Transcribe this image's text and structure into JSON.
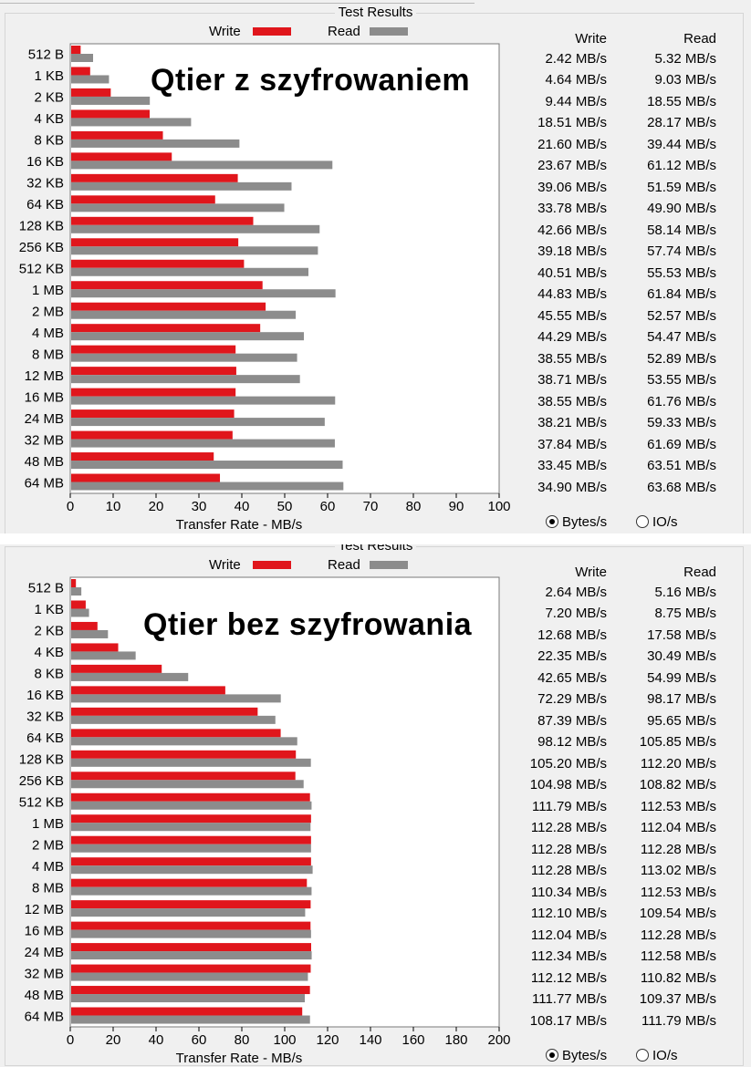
{
  "colors": {
    "write": "#e0161c",
    "read": "#8c8c8c"
  },
  "panels": [
    {
      "title": "Test Results",
      "overlay": "Qtier z szyfrowaniem",
      "legend_write": "Write",
      "legend_read": "Read",
      "table_head_write": "Write",
      "table_head_read": "Read",
      "radio_bytes": "Bytes/s",
      "radio_io": "IO/s",
      "radio_selected": "bytes",
      "chart_data": {
        "type": "bar",
        "orientation": "horizontal",
        "categories": [
          "512 B",
          "1 KB",
          "2 KB",
          "4 KB",
          "8 KB",
          "16 KB",
          "32 KB",
          "64 KB",
          "128 KB",
          "256 KB",
          "512 KB",
          "1 MB",
          "2 MB",
          "4 MB",
          "8 MB",
          "12 MB",
          "16 MB",
          "24 MB",
          "32 MB",
          "48 MB",
          "64 MB"
        ],
        "series": [
          {
            "name": "Write",
            "values": [
              2.42,
              4.64,
              9.44,
              18.51,
              21.6,
              23.67,
              39.06,
              33.78,
              42.66,
              39.18,
              40.51,
              44.83,
              45.55,
              44.29,
              38.55,
              38.71,
              38.55,
              38.21,
              37.84,
              33.45,
              34.9
            ]
          },
          {
            "name": "Read",
            "values": [
              5.32,
              9.03,
              18.55,
              28.17,
              39.44,
              61.12,
              51.59,
              49.9,
              58.14,
              57.74,
              55.53,
              61.84,
              52.57,
              54.47,
              52.89,
              53.55,
              61.76,
              59.33,
              61.69,
              63.51,
              63.68
            ]
          }
        ],
        "xlabel": "Transfer Rate - MB/s",
        "xlim": [
          0,
          100
        ],
        "xticks": [
          0,
          10,
          20,
          30,
          40,
          50,
          60,
          70,
          80,
          90,
          100
        ],
        "grid": false,
        "legend": "top"
      },
      "table": {
        "write": [
          "2.42 MB/s",
          "4.64 MB/s",
          "9.44 MB/s",
          "18.51 MB/s",
          "21.60 MB/s",
          "23.67 MB/s",
          "39.06 MB/s",
          "33.78 MB/s",
          "42.66 MB/s",
          "39.18 MB/s",
          "40.51 MB/s",
          "44.83 MB/s",
          "45.55 MB/s",
          "44.29 MB/s",
          "38.55 MB/s",
          "38.71 MB/s",
          "38.55 MB/s",
          "38.21 MB/s",
          "37.84 MB/s",
          "33.45 MB/s",
          "34.90 MB/s"
        ],
        "read": [
          "5.32 MB/s",
          "9.03 MB/s",
          "18.55 MB/s",
          "28.17 MB/s",
          "39.44 MB/s",
          "61.12 MB/s",
          "51.59 MB/s",
          "49.90 MB/s",
          "58.14 MB/s",
          "57.74 MB/s",
          "55.53 MB/s",
          "61.84 MB/s",
          "52.57 MB/s",
          "54.47 MB/s",
          "52.89 MB/s",
          "53.55 MB/s",
          "61.76 MB/s",
          "59.33 MB/s",
          "61.69 MB/s",
          "63.51 MB/s",
          "63.68 MB/s"
        ]
      }
    },
    {
      "title": "Test Results",
      "overlay": "Qtier bez szyfrowania",
      "legend_write": "Write",
      "legend_read": "Read",
      "table_head_write": "Write",
      "table_head_read": "Read",
      "radio_bytes": "Bytes/s",
      "radio_io": "IO/s",
      "radio_selected": "bytes",
      "chart_data": {
        "type": "bar",
        "orientation": "horizontal",
        "categories": [
          "512 B",
          "1 KB",
          "2 KB",
          "4 KB",
          "8 KB",
          "16 KB",
          "32 KB",
          "64 KB",
          "128 KB",
          "256 KB",
          "512 KB",
          "1 MB",
          "2 MB",
          "4 MB",
          "8 MB",
          "12 MB",
          "16 MB",
          "24 MB",
          "32 MB",
          "48 MB",
          "64 MB"
        ],
        "series": [
          {
            "name": "Write",
            "values": [
              2.64,
              7.2,
              12.68,
              22.35,
              42.65,
              72.29,
              87.39,
              98.12,
              105.2,
              104.98,
              111.79,
              112.28,
              112.28,
              112.28,
              110.34,
              112.1,
              112.04,
              112.34,
              112.12,
              111.77,
              108.17
            ]
          },
          {
            "name": "Read",
            "values": [
              5.16,
              8.75,
              17.58,
              30.49,
              54.99,
              98.17,
              95.65,
              105.85,
              112.2,
              108.82,
              112.53,
              112.04,
              112.28,
              113.02,
              112.53,
              109.54,
              112.28,
              112.58,
              110.82,
              109.37,
              111.79
            ]
          }
        ],
        "xlabel": "Transfer Rate - MB/s",
        "xlim": [
          0,
          200
        ],
        "xticks": [
          0,
          20,
          40,
          60,
          80,
          100,
          120,
          140,
          160,
          180,
          200
        ],
        "grid": false,
        "legend": "top"
      },
      "table": {
        "write": [
          "2.64 MB/s",
          "7.20 MB/s",
          "12.68 MB/s",
          "22.35 MB/s",
          "42.65 MB/s",
          "72.29 MB/s",
          "87.39 MB/s",
          "98.12 MB/s",
          "105.20 MB/s",
          "104.98 MB/s",
          "111.79 MB/s",
          "112.28 MB/s",
          "112.28 MB/s",
          "112.28 MB/s",
          "110.34 MB/s",
          "112.10 MB/s",
          "112.04 MB/s",
          "112.34 MB/s",
          "112.12 MB/s",
          "111.77 MB/s",
          "108.17 MB/s"
        ],
        "read": [
          "5.16 MB/s",
          "8.75 MB/s",
          "17.58 MB/s",
          "30.49 MB/s",
          "54.99 MB/s",
          "98.17 MB/s",
          "95.65 MB/s",
          "105.85 MB/s",
          "112.20 MB/s",
          "108.82 MB/s",
          "112.53 MB/s",
          "112.04 MB/s",
          "112.28 MB/s",
          "113.02 MB/s",
          "112.53 MB/s",
          "109.54 MB/s",
          "112.28 MB/s",
          "112.58 MB/s",
          "110.82 MB/s",
          "109.37 MB/s",
          "111.79 MB/s"
        ]
      }
    }
  ]
}
